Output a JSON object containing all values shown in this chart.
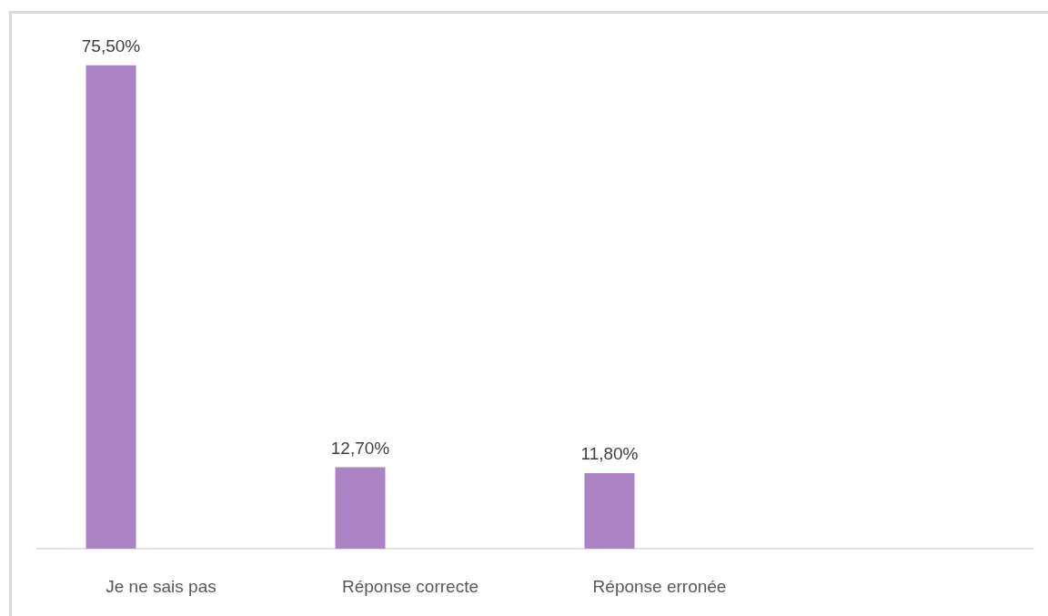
{
  "chart_data": {
    "type": "bar",
    "categories": [
      "Je ne sais pas",
      "Réponse correcte",
      "Réponse erronée",
      null
    ],
    "values": [
      75.5,
      12.7,
      11.8,
      null
    ],
    "value_labels": [
      "75,50%",
      "12,70%",
      "11,80%",
      null
    ],
    "color": "#ac84c6",
    "tick_labels": "x"
  }
}
